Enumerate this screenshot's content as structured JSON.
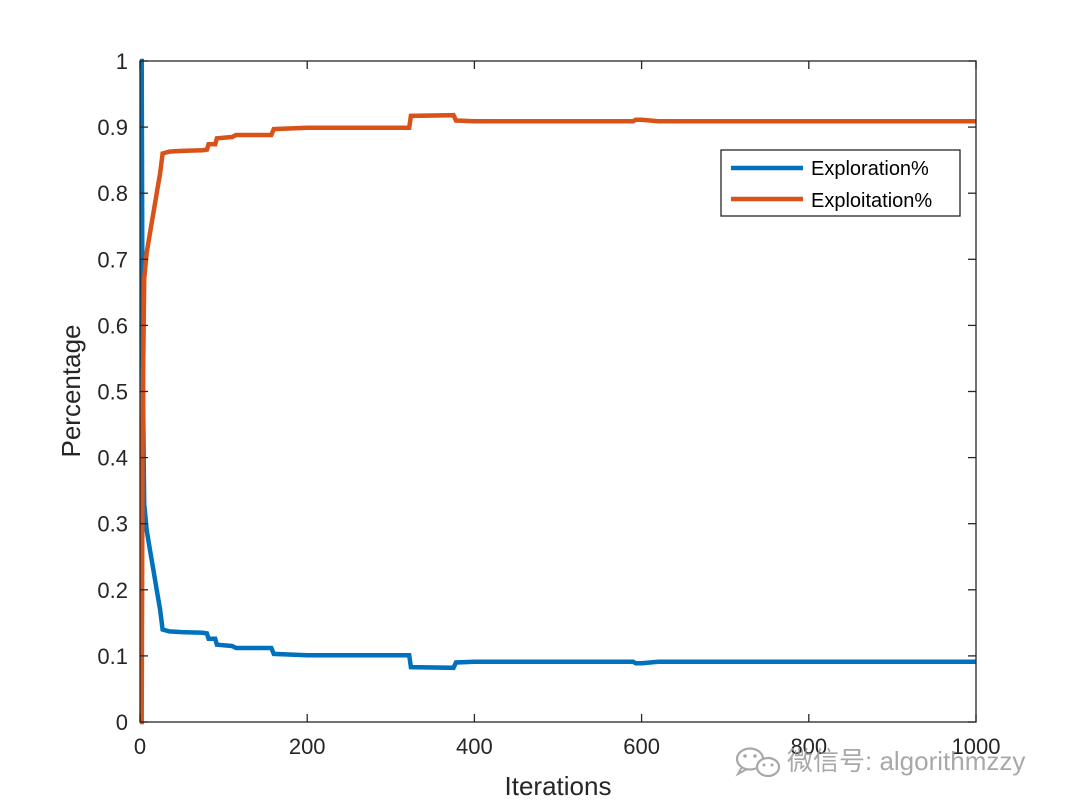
{
  "chart_data": {
    "type": "line",
    "title": "",
    "xlabel": "Iterations",
    "ylabel": "Percentage",
    "xlim": [
      0,
      1000
    ],
    "ylim": [
      0,
      1
    ],
    "x_ticks": [
      0,
      200,
      400,
      600,
      800,
      1000
    ],
    "y_ticks": [
      0,
      0.1,
      0.2,
      0.3,
      0.4,
      0.5,
      0.6,
      0.7,
      0.8,
      0.9,
      1
    ],
    "grid": false,
    "legend_position": "top-right",
    "series": [
      {
        "name": "Exploration%",
        "color": "#0072BD",
        "points": [
          [
            0,
            1.0
          ],
          [
            2,
            1.0
          ],
          [
            3,
            0.6
          ],
          [
            4,
            0.45
          ],
          [
            5,
            0.33
          ],
          [
            8,
            0.29
          ],
          [
            12,
            0.26
          ],
          [
            16,
            0.23
          ],
          [
            20,
            0.2
          ],
          [
            24,
            0.17
          ],
          [
            27,
            0.14
          ],
          [
            35,
            0.137
          ],
          [
            50,
            0.136
          ],
          [
            75,
            0.135
          ],
          [
            80,
            0.134
          ],
          [
            82,
            0.126
          ],
          [
            90,
            0.126
          ],
          [
            92,
            0.117
          ],
          [
            110,
            0.115
          ],
          [
            115,
            0.112
          ],
          [
            157,
            0.112
          ],
          [
            160,
            0.103
          ],
          [
            200,
            0.101
          ],
          [
            322,
            0.101
          ],
          [
            324,
            0.083
          ],
          [
            375,
            0.082
          ],
          [
            378,
            0.09
          ],
          [
            400,
            0.091
          ],
          [
            590,
            0.091
          ],
          [
            593,
            0.089
          ],
          [
            600,
            0.089
          ],
          [
            610,
            0.09
          ],
          [
            620,
            0.091
          ],
          [
            1000,
            0.091
          ]
        ]
      },
      {
        "name": "Exploitation%",
        "color": "#D95319",
        "points": [
          [
            0,
            0.0
          ],
          [
            2,
            0.0
          ],
          [
            3,
            0.4
          ],
          [
            4,
            0.55
          ],
          [
            5,
            0.67
          ],
          [
            8,
            0.71
          ],
          [
            12,
            0.74
          ],
          [
            16,
            0.77
          ],
          [
            20,
            0.8
          ],
          [
            24,
            0.83
          ],
          [
            27,
            0.86
          ],
          [
            35,
            0.863
          ],
          [
            50,
            0.864
          ],
          [
            75,
            0.865
          ],
          [
            80,
            0.866
          ],
          [
            82,
            0.874
          ],
          [
            90,
            0.874
          ],
          [
            92,
            0.883
          ],
          [
            110,
            0.885
          ],
          [
            115,
            0.888
          ],
          [
            157,
            0.888
          ],
          [
            160,
            0.897
          ],
          [
            200,
            0.899
          ],
          [
            322,
            0.899
          ],
          [
            324,
            0.917
          ],
          [
            375,
            0.918
          ],
          [
            378,
            0.91
          ],
          [
            400,
            0.909
          ],
          [
            590,
            0.909
          ],
          [
            593,
            0.911
          ],
          [
            600,
            0.911
          ],
          [
            610,
            0.91
          ],
          [
            620,
            0.909
          ],
          [
            1000,
            0.909
          ]
        ]
      }
    ]
  },
  "watermark": {
    "text": "微信号: algorithmzzy",
    "icon": "wechat-icon"
  },
  "colors": {
    "axis": "#262626",
    "background": "#ffffff"
  }
}
